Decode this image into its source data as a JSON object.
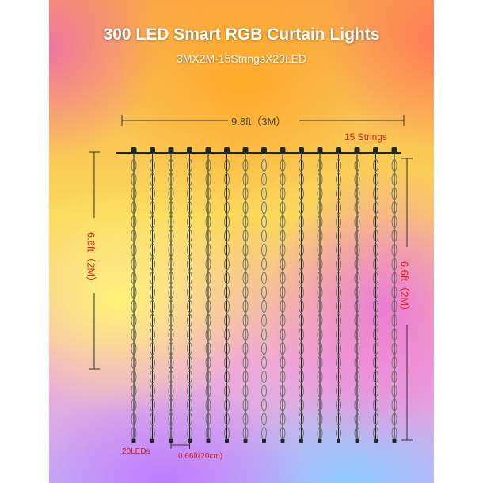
{
  "header": {
    "title": "300 LED Smart RGB Curtain Lights",
    "subtitle": "3MX2M-15StringsX20LED"
  },
  "dimensions": {
    "width_label": "9.8ft（3M）",
    "height_left_label": "6.6ft（2M）",
    "height_right_label": "6.6ft（2M）",
    "strings_label": "15 Strings",
    "leds_label": "20LEDs",
    "spacing_label": "0.66ft(20cm)"
  },
  "product": {
    "string_count": 15,
    "leds_per_string": 20
  },
  "colors": {
    "wire": "#1f2a22",
    "led_outline": "#6d7a6c",
    "dimension_line": "#333333",
    "label_red": "#d4241b"
  }
}
